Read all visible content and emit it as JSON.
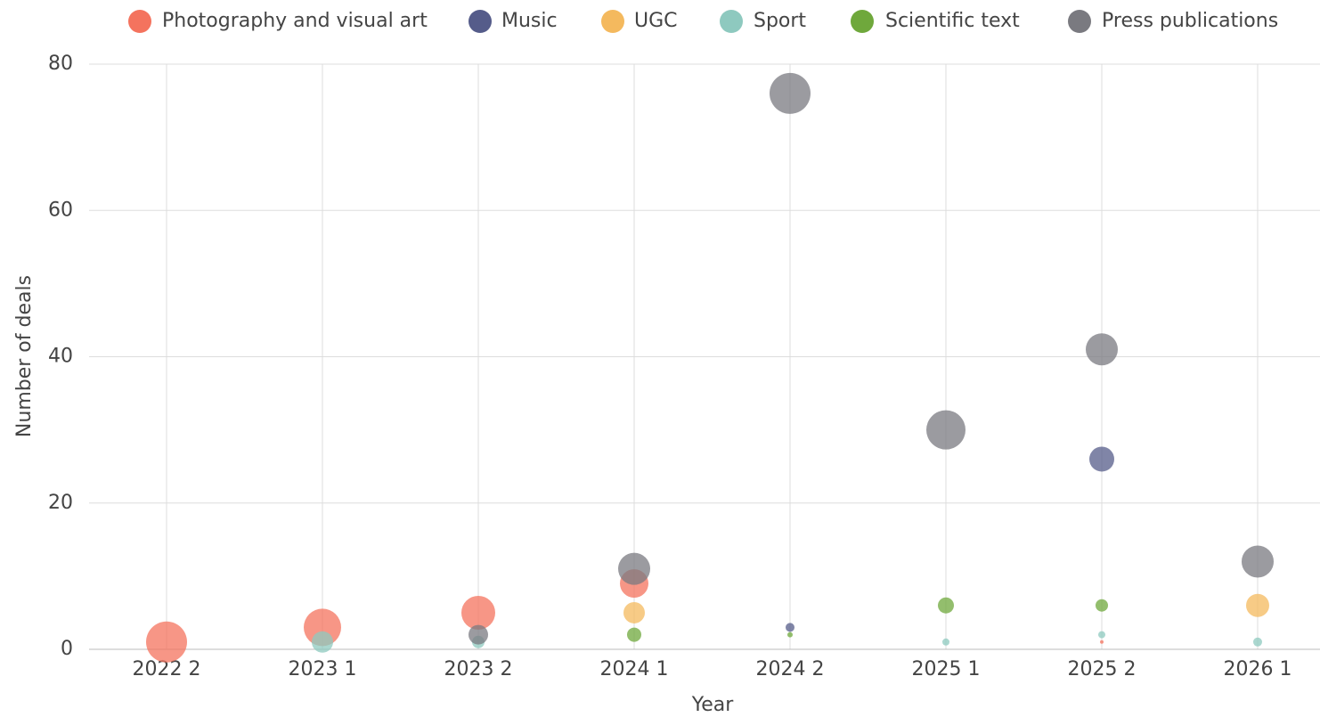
{
  "chart_data": {
    "type": "bubble",
    "x_label": "Year",
    "y_label": "Number of deals",
    "categories": [
      "2022 2",
      "2023 1",
      "2023 2",
      "2024 1",
      "2024 2",
      "2025 1",
      "2025 2",
      "2026 1"
    ],
    "ylim": [
      0,
      80
    ],
    "yticks": [
      0,
      20,
      40,
      60,
      80
    ],
    "grid": true,
    "legend": "top",
    "series": [
      {
        "name": "Photography and visual art",
        "color": "#f4735e",
        "values": [
          1,
          3,
          5,
          9,
          null,
          null,
          1,
          null
        ],
        "sizes": [
          23,
          21,
          19,
          16,
          null,
          null,
          2,
          null
        ]
      },
      {
        "name": "Music",
        "color": "#555c8a",
        "values": [
          null,
          null,
          null,
          null,
          3,
          null,
          26,
          null
        ],
        "sizes": [
          null,
          null,
          null,
          null,
          5,
          null,
          14,
          null
        ]
      },
      {
        "name": "UGC",
        "color": "#f4b95e",
        "values": [
          null,
          null,
          null,
          5,
          null,
          null,
          null,
          6
        ],
        "sizes": [
          null,
          null,
          null,
          12,
          null,
          null,
          null,
          13
        ]
      },
      {
        "name": "Sport",
        "color": "#8ec9bf",
        "values": [
          null,
          1,
          1,
          null,
          null,
          1,
          2,
          1
        ],
        "sizes": [
          null,
          12,
          7,
          null,
          null,
          4,
          4,
          5
        ]
      },
      {
        "name": "Scientific text",
        "color": "#6fa83c",
        "values": [
          null,
          null,
          null,
          2,
          2,
          6,
          6,
          null
        ],
        "sizes": [
          null,
          null,
          null,
          8,
          3,
          9,
          7,
          null
        ]
      },
      {
        "name": "Press publications",
        "color": "#7a7a80",
        "values": [
          null,
          null,
          2,
          11,
          76,
          30,
          41,
          12
        ],
        "sizes": [
          null,
          null,
          11,
          18,
          23,
          22,
          18,
          18
        ]
      }
    ]
  }
}
